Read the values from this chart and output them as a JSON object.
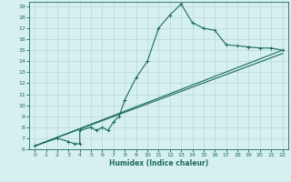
{
  "xlabel": "Humidex (Indice chaleur)",
  "line_color": "#1a6b5a",
  "bg_color": "#d6efef",
  "grid_color": "#b8d8d8",
  "xlim": [
    -0.5,
    22.5
  ],
  "ylim": [
    6,
    19.4
  ],
  "xticks": [
    0,
    1,
    2,
    3,
    4,
    5,
    6,
    7,
    8,
    9,
    10,
    11,
    12,
    13,
    14,
    15,
    16,
    17,
    18,
    19,
    20,
    21,
    22
  ],
  "yticks": [
    6,
    7,
    8,
    9,
    10,
    11,
    12,
    13,
    14,
    15,
    16,
    17,
    18,
    19
  ],
  "line1_x": [
    0,
    2,
    3,
    3.5,
    4,
    4,
    5,
    5.5,
    6,
    6.5,
    7,
    7.5,
    8,
    9,
    10,
    11,
    12,
    13,
    14,
    15,
    16,
    17,
    18,
    19,
    20,
    21,
    22
  ],
  "line1_y": [
    6.3,
    7.0,
    6.7,
    6.5,
    6.5,
    7.7,
    8.0,
    7.7,
    8.0,
    7.7,
    8.5,
    9.0,
    10.5,
    12.5,
    14.0,
    17.0,
    18.2,
    19.2,
    17.5,
    17.0,
    16.8,
    15.5,
    15.4,
    15.3,
    15.2,
    15.2,
    15.0
  ],
  "line2_x": [
    0,
    22
  ],
  "line2_y": [
    6.3,
    15.0
  ],
  "line3_x": [
    0,
    22
  ],
  "line3_y": [
    6.3,
    14.7
  ]
}
